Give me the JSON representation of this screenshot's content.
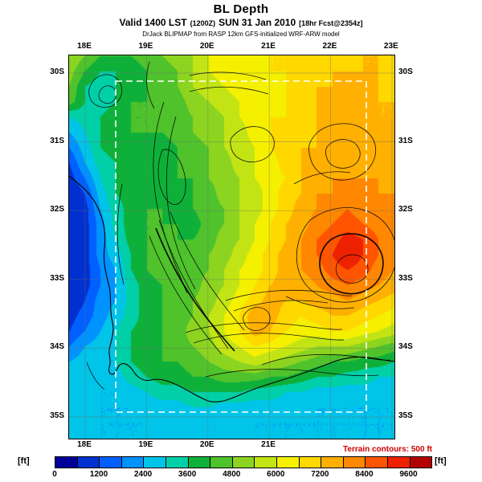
{
  "header": {
    "title": "BL Depth",
    "valid_prefix": "Valid 1400 LST",
    "valid_zulu": "(1200Z)",
    "valid_date": "SUN 31 Jan 2010",
    "valid_fcst": "[18hr Fcst@2354z]",
    "model_line": "DrJack BLIPMAP from RASP 12km GFS-initialized WRF-ARW model"
  },
  "footer": {
    "terrain_note": "Terrain contours: 500 ft",
    "terrain_note_color": "#cc0000",
    "units_label": "[ft]"
  },
  "chart_data": {
    "type": "heatmap",
    "title": "BL Depth",
    "units": "ft",
    "x_ticks_top": [
      "18E",
      "19E",
      "20E",
      "21E",
      "22E",
      "23E"
    ],
    "x_ticks_bottom": [
      "18E",
      "19E",
      "20E",
      "21E"
    ],
    "y_ticks_left": [
      "30S",
      "31S",
      "32S",
      "33S",
      "34S",
      "35S"
    ],
    "y_ticks_right": [
      "30S",
      "31S",
      "32S",
      "33S",
      "34S",
      "35S"
    ],
    "lon_range_deg_e": [
      17.74,
      23.04
    ],
    "lat_range_deg_s": [
      29.74,
      35.32
    ],
    "annotation": "Terrain contours: 500 ft",
    "colorbar": {
      "ticks": [
        0,
        1200,
        2400,
        3600,
        4800,
        6000,
        7200,
        8400,
        9600
      ],
      "level_step": 600,
      "colors": [
        "#000099",
        "#0030d0",
        "#0060ff",
        "#0092ff",
        "#00c4e8",
        "#00cfa8",
        "#0fb03a",
        "#4fc22c",
        "#8cd420",
        "#c3e414",
        "#f4f000",
        "#ffd800",
        "#ffb000",
        "#ff8800",
        "#ff5500",
        "#ee2200",
        "#b40000"
      ]
    },
    "note": "BL depth field (ft) estimated from filled colors on a 22x26 lon-lat grid, row 0 = north",
    "grid": [
      [
        5400,
        4800,
        4200,
        4200,
        4200,
        4500,
        4800,
        5100,
        5400,
        6000,
        6300,
        6300,
        6300,
        6600,
        6600,
        6600,
        6900,
        6900,
        6900,
        7200,
        7200,
        6900
      ],
      [
        5100,
        4200,
        3600,
        3600,
        3900,
        4200,
        4500,
        4800,
        5400,
        6000,
        6300,
        6300,
        6300,
        6600,
        6600,
        6900,
        6900,
        7200,
        7200,
        7200,
        7200,
        6900
      ],
      [
        4800,
        3600,
        3300,
        3600,
        3900,
        4200,
        4500,
        4800,
        5400,
        5700,
        6000,
        6300,
        6300,
        6300,
        6600,
        6900,
        7200,
        7200,
        7500,
        7500,
        7200,
        6900
      ],
      [
        4500,
        3600,
        3300,
        3600,
        4200,
        4200,
        4500,
        4500,
        5100,
        5400,
        5700,
        6000,
        6300,
        6300,
        6600,
        6900,
        7200,
        7500,
        7500,
        7500,
        7200,
        7200
      ],
      [
        3000,
        3300,
        3600,
        3900,
        4200,
        4200,
        4200,
        4500,
        4800,
        5100,
        5400,
        6000,
        6300,
        6600,
        6600,
        6900,
        7200,
        7500,
        7800,
        7500,
        7200,
        7200
      ],
      [
        2400,
        3000,
        3600,
        3900,
        4200,
        4200,
        4200,
        4500,
        4800,
        5100,
        5400,
        5700,
        6300,
        6600,
        6900,
        6900,
        7200,
        7500,
        7800,
        7500,
        7500,
        7200
      ],
      [
        1800,
        2700,
        3600,
        3900,
        3900,
        4200,
        3900,
        4200,
        4500,
        4800,
        5400,
        5700,
        6000,
        6600,
        6900,
        7200,
        7200,
        7500,
        7500,
        7500,
        7500,
        7200
      ],
      [
        1200,
        2400,
        3300,
        3600,
        3900,
        3900,
        3900,
        4200,
        4500,
        4800,
        5100,
        5700,
        6000,
        6300,
        6900,
        7200,
        7500,
        7500,
        7500,
        7800,
        7500,
        7500
      ],
      [
        900,
        1800,
        3000,
        3600,
        3900,
        3900,
        3900,
        4200,
        4200,
        4800,
        5100,
        5400,
        6000,
        6300,
        6600,
        7200,
        7500,
        7800,
        7800,
        7800,
        7800,
        7500
      ],
      [
        600,
        1200,
        2700,
        3600,
        3900,
        4200,
        3900,
        3900,
        4200,
        4500,
        5100,
        5400,
        5700,
        6300,
        6900,
        7200,
        7800,
        7800,
        8100,
        8100,
        7800,
        7800
      ],
      [
        600,
        900,
        2400,
        3300,
        3900,
        4200,
        4200,
        3900,
        4200,
        4500,
        4800,
        5400,
        5700,
        6300,
        6900,
        7500,
        7800,
        8100,
        8400,
        8100,
        8100,
        7800
      ],
      [
        600,
        900,
        2100,
        3300,
        3900,
        4200,
        4200,
        4200,
        3900,
        4500,
        4800,
        5400,
        6000,
        6600,
        7200,
        7500,
        8100,
        8400,
        8700,
        8400,
        8100,
        8100
      ],
      [
        600,
        900,
        2100,
        3000,
        3900,
        4200,
        4200,
        4200,
        4200,
        4500,
        5100,
        5400,
        6000,
        6600,
        7200,
        7800,
        8400,
        8700,
        9300,
        9000,
        8400,
        8100
      ],
      [
        600,
        900,
        2100,
        2700,
        3600,
        4200,
        4200,
        4200,
        4200,
        4800,
        5100,
        5700,
        6300,
        6900,
        7500,
        7800,
        8400,
        9000,
        9600,
        9000,
        8400,
        8100
      ],
      [
        600,
        900,
        1800,
        2400,
        3600,
        4200,
        4500,
        4200,
        4500,
        4800,
        5400,
        6000,
        6300,
        6900,
        7500,
        7800,
        8100,
        8700,
        9000,
        8700,
        8100,
        7800
      ],
      [
        600,
        900,
        1800,
        2400,
        3300,
        3900,
        4200,
        4500,
        4500,
        5100,
        5400,
        6000,
        6600,
        7200,
        7500,
        7500,
        7800,
        8100,
        8400,
        8100,
        7800,
        7500
      ],
      [
        600,
        1200,
        2100,
        2400,
        3300,
        3900,
        4200,
        4500,
        4800,
        5100,
        5700,
        6300,
        6900,
        7500,
        7200,
        7200,
        7500,
        7500,
        7800,
        7500,
        7200,
        6900
      ],
      [
        900,
        1500,
        2100,
        2700,
        3300,
        3900,
        4200,
        4500,
        4800,
        5400,
        6000,
        6600,
        7800,
        7500,
        6900,
        6600,
        6900,
        7200,
        7200,
        6900,
        6600,
        6300
      ],
      [
        1200,
        1800,
        2400,
        3000,
        3600,
        3900,
        4200,
        4500,
        5100,
        5400,
        6000,
        6600,
        7500,
        7200,
        6600,
        6300,
        6300,
        6600,
        6600,
        6300,
        6000,
        5700
      ],
      [
        1800,
        2400,
        2700,
        3000,
        3600,
        3900,
        4200,
        4500,
        4800,
        5100,
        5700,
        6000,
        6600,
        6300,
        6000,
        5700,
        5400,
        5400,
        5400,
        5100,
        4800,
        4500
      ],
      [
        2400,
        2700,
        2700,
        3000,
        3600,
        3900,
        4200,
        4200,
        4500,
        4800,
        5100,
        5400,
        5700,
        5400,
        5100,
        4800,
        4500,
        4200,
        4200,
        3900,
        3900,
        3600
      ],
      [
        2700,
        3000,
        2700,
        2700,
        3300,
        3600,
        3900,
        3900,
        4200,
        4200,
        4500,
        4500,
        4500,
        4200,
        4200,
        3900,
        3600,
        3600,
        3300,
        3300,
        3000,
        3000
      ],
      [
        2700,
        2700,
        2400,
        2400,
        2700,
        3000,
        3300,
        3300,
        3600,
        3600,
        3600,
        3600,
        3300,
        3300,
        3000,
        3000,
        2700,
        2700,
        2700,
        2700,
        2700,
        2700
      ],
      [
        2700,
        2700,
        2400,
        2400,
        2400,
        2700,
        2700,
        2700,
        3000,
        3000,
        2700,
        2700,
        2700,
        2700,
        2700,
        2700,
        2400,
        2400,
        2400,
        2400,
        2400,
        2400
      ],
      [
        2700,
        2700,
        2400,
        2400,
        2400,
        2400,
        2700,
        2700,
        2700,
        2700,
        2700,
        2700,
        2400,
        2400,
        2400,
        2400,
        2400,
        2400,
        2400,
        2400,
        2400,
        2400
      ],
      [
        2400,
        2400,
        2400,
        2400,
        2400,
        2400,
        2400,
        2400,
        2700,
        2700,
        2700,
        2400,
        2400,
        2400,
        2400,
        2400,
        2400,
        2400,
        2400,
        2400,
        2400,
        2400
      ]
    ]
  }
}
